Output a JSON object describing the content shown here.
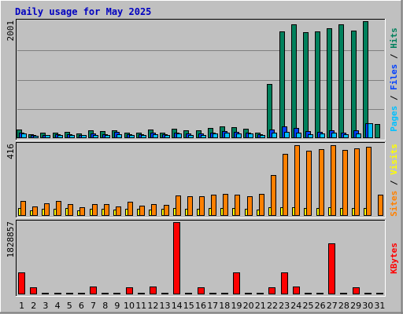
{
  "chart_data": {
    "type": "bar",
    "title": "Daily usage for May 2025",
    "categories": [
      "1",
      "2",
      "3",
      "4",
      "5",
      "6",
      "7",
      "8",
      "9",
      "10",
      "11",
      "12",
      "13",
      "14",
      "15",
      "16",
      "17",
      "18",
      "19",
      "20",
      "21",
      "22",
      "23",
      "24",
      "25",
      "26",
      "27",
      "28",
      "29",
      "30",
      "31"
    ],
    "weekend_days": [
      "3",
      "4",
      "10",
      "11",
      "17",
      "18",
      "24",
      "25",
      "31"
    ],
    "panels": [
      {
        "name": "hits-files-pages",
        "y_max_label": "2001",
        "y_max": 2001,
        "axis_label_parts": [
          {
            "text": "Pages",
            "color": "#00c0ff"
          },
          {
            "text": " / ",
            "color": "#000000"
          },
          {
            "text": "Files",
            "color": "#0040ff"
          },
          {
            "text": " / ",
            "color": "#000000"
          },
          {
            "text": "Hits",
            "color": "#00805c"
          }
        ],
        "series": [
          {
            "name": "Hits",
            "color": "#00805c",
            "values": [
              150,
              70,
              90,
              100,
              110,
              80,
              130,
              120,
              130,
              90,
              100,
              150,
              100,
              160,
              130,
              140,
              180,
              200,
              190,
              160,
              100,
              930,
              1820,
              1950,
              1810,
              1830,
              1880,
              1950,
              1840,
              2001,
              240
            ]
          },
          {
            "name": "Files",
            "color": "#0040ff",
            "values": [
              100,
              50,
              60,
              70,
              70,
              60,
              80,
              70,
              110,
              70,
              70,
              90,
              70,
              100,
              80,
              80,
              100,
              120,
              110,
              100,
              70,
              150,
              200,
              180,
              120,
              110,
              140,
              100,
              130,
              260,
              null
            ]
          },
          {
            "name": "Pages",
            "color": "#00c0ff",
            "values": [
              80,
              40,
              50,
              60,
              60,
              50,
              60,
              60,
              70,
              50,
              60,
              70,
              60,
              80,
              60,
              60,
              80,
              90,
              80,
              80,
              50,
              100,
              110,
              100,
              70,
              80,
              90,
              70,
              80,
              250,
              null
            ]
          }
        ]
      },
      {
        "name": "visits-sites",
        "y_max_label": "416",
        "y_max": 416,
        "axis_label_parts": [
          {
            "text": "Sites",
            "color": "#ff8000"
          },
          {
            "text": " / ",
            "color": "#000000"
          },
          {
            "text": "Visits",
            "color": "#ffff00"
          }
        ],
        "series": [
          {
            "name": "Visits",
            "color": "#ffff00",
            "values": [
              45,
              30,
              40,
              40,
              45,
              30,
              40,
              40,
              35,
              40,
              40,
              35,
              40,
              45,
              40,
              40,
              45,
              45,
              45,
              40,
              35,
              50,
              50,
              50,
              45,
              45,
              50,
              45,
              45,
              45,
              null
            ]
          },
          {
            "name": "Sites",
            "color": "#ff8000",
            "values": [
              85,
              55,
              75,
              85,
              70,
              50,
              70,
              70,
              55,
              80,
              60,
              70,
              65,
              120,
              115,
              115,
              125,
              130,
              125,
              115,
              130,
              240,
              360,
              410,
              380,
              390,
              410,
              385,
              395,
              400,
              125
            ]
          }
        ]
      },
      {
        "name": "kbytes",
        "y_max_label": "1828857",
        "y_max": 1828857,
        "axis_label_parts": [
          {
            "text": "KBytes",
            "color": "#ff0000"
          }
        ],
        "series": [
          {
            "name": "KBytes",
            "color": "#ff0000",
            "values": [
              560000,
              180000,
              15000,
              15000,
              15000,
              15000,
              190000,
              15000,
              15000,
              180000,
              15000,
              200000,
              15000,
              1828857,
              15000,
              180000,
              15000,
              15000,
              560000,
              15000,
              15000,
              180000,
              560000,
              190000,
              15000,
              15000,
              1300000,
              15000,
              180000,
              15000,
              15000
            ]
          }
        ]
      }
    ]
  }
}
